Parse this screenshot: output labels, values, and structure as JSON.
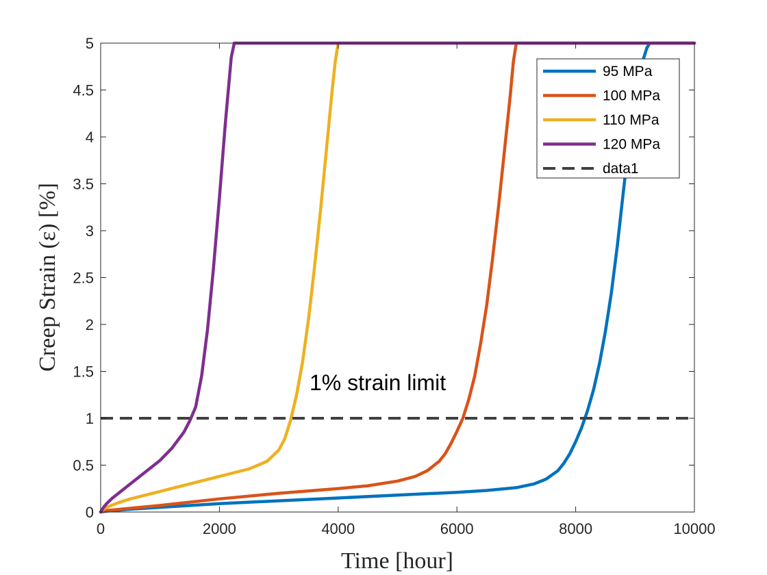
{
  "chart_data": {
    "type": "line",
    "xlabel": "Time [hour]",
    "ylabel": "Creep Strain (ε) [%]",
    "xlim": [
      0,
      10000
    ],
    "ylim": [
      0,
      5
    ],
    "xticks": [
      0,
      2000,
      4000,
      6000,
      8000,
      10000
    ],
    "yticks": [
      0,
      0.5,
      1,
      1.5,
      2,
      2.5,
      3,
      3.5,
      4,
      4.5,
      5
    ],
    "xtick_labels": [
      "0",
      "2000",
      "4000",
      "6000",
      "8000",
      "10000"
    ],
    "ytick_labels": [
      "0",
      "0.5",
      "1",
      "1.5",
      "2",
      "2.5",
      "3",
      "3.5",
      "4",
      "4.5",
      "5"
    ],
    "grid": false,
    "legend_position": "top-right",
    "annotation": "1% strain limit",
    "series": [
      {
        "name": "95 MPa",
        "color": "#0072BD",
        "style": "solid",
        "x": [
          0,
          100,
          500,
          1000,
          2000,
          3000,
          4000,
          5000,
          6000,
          6500,
          7000,
          7300,
          7500,
          7700,
          7800,
          7900,
          8000,
          8100,
          8200,
          8300,
          8400,
          8500,
          8600,
          8700,
          8800,
          8900,
          9000,
          9100,
          9200,
          9250,
          10000
        ],
        "y": [
          0,
          0.01,
          0.03,
          0.05,
          0.09,
          0.12,
          0.15,
          0.18,
          0.21,
          0.23,
          0.26,
          0.3,
          0.35,
          0.44,
          0.52,
          0.62,
          0.75,
          0.9,
          1.08,
          1.3,
          1.58,
          1.92,
          2.33,
          2.83,
          3.4,
          3.95,
          4.4,
          4.75,
          4.95,
          5.0,
          5.0
        ]
      },
      {
        "name": "100 MPa",
        "color": "#D95319",
        "style": "solid",
        "x": [
          0,
          100,
          500,
          1000,
          2000,
          3000,
          4000,
          4500,
          5000,
          5300,
          5500,
          5700,
          5800,
          5900,
          6000,
          6100,
          6200,
          6300,
          6400,
          6500,
          6600,
          6700,
          6800,
          6900,
          6950,
          7000,
          10000
        ],
        "y": [
          0,
          0.015,
          0.04,
          0.07,
          0.14,
          0.2,
          0.25,
          0.28,
          0.33,
          0.38,
          0.44,
          0.54,
          0.62,
          0.73,
          0.86,
          1.0,
          1.2,
          1.45,
          1.8,
          2.2,
          2.7,
          3.25,
          3.85,
          4.45,
          4.8,
          5.0,
          5.0
        ]
      },
      {
        "name": "110 MPa",
        "color": "#EDB120",
        "style": "solid",
        "x": [
          0,
          50,
          100,
          300,
          500,
          1000,
          1500,
          2000,
          2500,
          2800,
          3000,
          3100,
          3200,
          3300,
          3400,
          3500,
          3600,
          3700,
          3800,
          3900,
          3950,
          4000,
          10000
        ],
        "y": [
          0,
          0.03,
          0.05,
          0.1,
          0.14,
          0.22,
          0.3,
          0.38,
          0.46,
          0.54,
          0.66,
          0.78,
          0.98,
          1.25,
          1.6,
          2.05,
          2.6,
          3.2,
          3.85,
          4.5,
          4.8,
          5.0,
          5.0
        ]
      },
      {
        "name": "120 MPa",
        "color": "#7E2F8E",
        "style": "solid",
        "x": [
          0,
          50,
          100,
          200,
          500,
          1000,
          1200,
          1400,
          1500,
          1600,
          1700,
          1800,
          1900,
          2000,
          2100,
          2200,
          2250,
          10000
        ],
        "y": [
          0,
          0.05,
          0.09,
          0.15,
          0.3,
          0.55,
          0.68,
          0.85,
          0.97,
          1.12,
          1.45,
          1.95,
          2.6,
          3.35,
          4.15,
          4.85,
          5.0,
          5.0
        ]
      },
      {
        "name": "data1",
        "color": "#404040",
        "style": "dashed",
        "x": [
          0,
          10000
        ],
        "y": [
          1,
          1
        ]
      }
    ]
  }
}
